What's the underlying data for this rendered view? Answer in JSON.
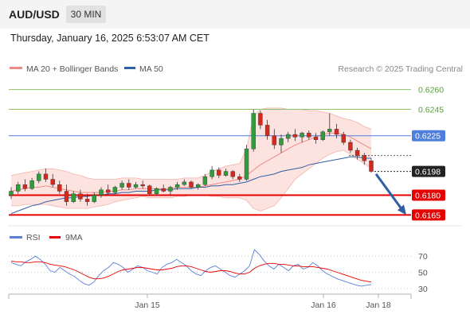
{
  "header": {
    "symbol": "AUD/USD",
    "timeframe": "30 MIN",
    "datetime": "Thursday, January 16, 2025 6:53:07 AM CET"
  },
  "legend": {
    "items": [
      {
        "label": "MA 20 + Bollinger Bands",
        "color": "#f08c84"
      },
      {
        "label": "MA 50",
        "color": "#2e5fa3"
      }
    ],
    "copyright": "Research © 2025 Trading Central"
  },
  "chart_data": [
    {
      "type": "line",
      "subtype": "candlestick",
      "title": "",
      "y_axis_side": "right",
      "ylim": [
        0.6158,
        0.627
      ],
      "x_tick_labels": [
        "Jan 15",
        "Jan 16",
        "Jan 18"
      ],
      "levels": [
        {
          "value": "0.6260",
          "kind": "target",
          "color": "#8dc26a"
        },
        {
          "value": "0.6245",
          "kind": "target",
          "color": "#8dc26a"
        },
        {
          "value": "0.6225",
          "kind": "pivot",
          "color": "#4f7fdc"
        },
        {
          "value": "0.6198",
          "kind": "last-price",
          "color": "#222222"
        },
        {
          "value": "0.6180",
          "kind": "support",
          "color": "#e60000"
        },
        {
          "value": "0.6165",
          "kind": "support",
          "color": "#e60000"
        }
      ],
      "forecast_arrow": {
        "from": 0.6196,
        "to": 0.6165,
        "direction": "down",
        "color": "#2e5fa3"
      },
      "series": [
        {
          "name": "MA 20 + Bollinger Bands",
          "color": "#f08c84"
        },
        {
          "name": "MA 50",
          "color": "#2e5fa3"
        }
      ],
      "candles": [
        [
          0.618,
          0.6186,
          0.6177,
          0.6183
        ],
        [
          0.6183,
          0.619,
          0.6181,
          0.6188
        ],
        [
          0.6188,
          0.6192,
          0.6183,
          0.6185
        ],
        [
          0.6185,
          0.6193,
          0.6184,
          0.6191
        ],
        [
          0.6191,
          0.6198,
          0.6189,
          0.6196
        ],
        [
          0.6196,
          0.62,
          0.619,
          0.6192
        ],
        [
          0.6192,
          0.6196,
          0.6186,
          0.6188
        ],
        [
          0.6188,
          0.6191,
          0.6181,
          0.6183
        ],
        [
          0.6183,
          0.6188,
          0.6172,
          0.6175
        ],
        [
          0.6175,
          0.6183,
          0.6174,
          0.6181
        ],
        [
          0.6181,
          0.6184,
          0.6175,
          0.6177
        ],
        [
          0.6177,
          0.6181,
          0.6172,
          0.6175
        ],
        [
          0.6175,
          0.6182,
          0.6174,
          0.618
        ],
        [
          0.618,
          0.6186,
          0.6178,
          0.6184
        ],
        [
          0.6184,
          0.6188,
          0.618,
          0.6182
        ],
        [
          0.6182,
          0.6187,
          0.6181,
          0.6186
        ],
        [
          0.6186,
          0.6191,
          0.6184,
          0.6189
        ],
        [
          0.6189,
          0.6192,
          0.6184,
          0.6186
        ],
        [
          0.6186,
          0.619,
          0.6185,
          0.6188
        ],
        [
          0.6188,
          0.6191,
          0.6185,
          0.6187
        ],
        [
          0.6187,
          0.6188,
          0.618,
          0.6181
        ],
        [
          0.6181,
          0.6186,
          0.618,
          0.6185
        ],
        [
          0.6185,
          0.6188,
          0.6182,
          0.6183
        ],
        [
          0.6183,
          0.6187,
          0.618,
          0.6186
        ],
        [
          0.6186,
          0.619,
          0.6184,
          0.6188
        ],
        [
          0.6188,
          0.6192,
          0.6187,
          0.619
        ],
        [
          0.619,
          0.6191,
          0.6185,
          0.6186
        ],
        [
          0.6186,
          0.6189,
          0.6184,
          0.6188
        ],
        [
          0.6188,
          0.6196,
          0.6187,
          0.6194
        ],
        [
          0.6194,
          0.6202,
          0.6192,
          0.6199
        ],
        [
          0.6199,
          0.6201,
          0.6193,
          0.6195
        ],
        [
          0.6195,
          0.62,
          0.6194,
          0.6198
        ],
        [
          0.6198,
          0.6199,
          0.6192,
          0.6194
        ],
        [
          0.6194,
          0.6196,
          0.619,
          0.6192
        ],
        [
          0.6192,
          0.6218,
          0.6191,
          0.6215
        ],
        [
          0.6215,
          0.6245,
          0.6213,
          0.6242
        ],
        [
          0.6242,
          0.6244,
          0.623,
          0.6233
        ],
        [
          0.6233,
          0.6237,
          0.6222,
          0.6225
        ],
        [
          0.6225,
          0.623,
          0.6215,
          0.6218
        ],
        [
          0.6218,
          0.6226,
          0.6212,
          0.6223
        ],
        [
          0.6223,
          0.6228,
          0.622,
          0.6226
        ],
        [
          0.6226,
          0.623,
          0.6221,
          0.6224
        ],
        [
          0.6224,
          0.6228,
          0.622,
          0.6227
        ],
        [
          0.6227,
          0.6229,
          0.6222,
          0.6224
        ],
        [
          0.6224,
          0.6227,
          0.6219,
          0.6222
        ],
        [
          0.6222,
          0.6229,
          0.6221,
          0.6228
        ],
        [
          0.6228,
          0.6242,
          0.6225,
          0.623
        ],
        [
          0.623,
          0.6234,
          0.6223,
          0.6226
        ],
        [
          0.6226,
          0.6228,
          0.6218,
          0.622
        ],
        [
          0.622,
          0.6222,
          0.6212,
          0.6214
        ],
        [
          0.6214,
          0.6216,
          0.6207,
          0.621
        ],
        [
          0.621,
          0.6212,
          0.6203,
          0.6206
        ],
        [
          0.6206,
          0.6208,
          0.6197,
          0.6198
        ]
      ],
      "ma20": [
        0.6183,
        0.6184,
        0.6185,
        0.6186,
        0.6186,
        0.6187,
        0.6186,
        0.6185,
        0.6184,
        0.6183,
        0.6182,
        0.6182,
        0.6182,
        0.6182,
        0.6183,
        0.6183,
        0.6184,
        0.6184,
        0.6185,
        0.6185,
        0.6185,
        0.6185,
        0.6185,
        0.6185,
        0.6186,
        0.6186,
        0.6186,
        0.6186,
        0.6187,
        0.6188,
        0.6189,
        0.619,
        0.6191,
        0.6192,
        0.6195,
        0.6199,
        0.6203,
        0.6206,
        0.6209,
        0.6212,
        0.6215,
        0.6218,
        0.622,
        0.6222,
        0.6224,
        0.6226,
        0.6227,
        0.6227,
        0.6226,
        0.6224,
        0.6221,
        0.6218,
        0.6215
      ],
      "ma50": [
        0.6166,
        0.6168,
        0.617,
        0.6172,
        0.6173,
        0.6175,
        0.6176,
        0.6177,
        0.6178,
        0.6178,
        0.6179,
        0.6179,
        0.618,
        0.618,
        0.6181,
        0.6181,
        0.6182,
        0.6182,
        0.6183,
        0.6183,
        0.6183,
        0.6184,
        0.6184,
        0.6184,
        0.6185,
        0.6185,
        0.6185,
        0.6186,
        0.6186,
        0.6187,
        0.6187,
        0.6188,
        0.6188,
        0.6189,
        0.619,
        0.6192,
        0.6194,
        0.6195,
        0.6196,
        0.6198,
        0.6199,
        0.62,
        0.6201,
        0.6203,
        0.6204,
        0.6205,
        0.6206,
        0.6207,
        0.6208,
        0.6209,
        0.6209,
        0.6208,
        0.6208
      ],
      "bb_upper": [
        0.6195,
        0.6196,
        0.6197,
        0.6198,
        0.6199,
        0.62,
        0.62,
        0.6199,
        0.6198,
        0.6196,
        0.6195,
        0.6193,
        0.6192,
        0.6192,
        0.6192,
        0.6192,
        0.6193,
        0.6193,
        0.6193,
        0.6192,
        0.6192,
        0.6192,
        0.6192,
        0.6192,
        0.6192,
        0.6193,
        0.6193,
        0.6193,
        0.6195,
        0.6198,
        0.62,
        0.6202,
        0.6203,
        0.6204,
        0.6215,
        0.624,
        0.6245,
        0.6246,
        0.6246,
        0.6246,
        0.6245,
        0.6245,
        0.6245,
        0.6244,
        0.6244,
        0.6243,
        0.6242,
        0.624,
        0.6238,
        0.6237,
        0.6235,
        0.6232,
        0.623
      ],
      "bb_lower": [
        0.6172,
        0.6172,
        0.6173,
        0.6173,
        0.6173,
        0.6173,
        0.6172,
        0.6171,
        0.617,
        0.617,
        0.617,
        0.617,
        0.6171,
        0.6172,
        0.6173,
        0.6175,
        0.6176,
        0.6177,
        0.6178,
        0.6179,
        0.6178,
        0.6178,
        0.6178,
        0.6178,
        0.6179,
        0.6179,
        0.618,
        0.618,
        0.618,
        0.6179,
        0.6179,
        0.6178,
        0.6178,
        0.6178,
        0.6176,
        0.617,
        0.6168,
        0.617,
        0.6172,
        0.6178,
        0.6185,
        0.6192,
        0.6196,
        0.62,
        0.6204,
        0.6208,
        0.6211,
        0.6213,
        0.6214,
        0.6211,
        0.6207,
        0.6204,
        0.62
      ]
    },
    {
      "type": "line",
      "title": "",
      "ylim": [
        25,
        80
      ],
      "y_ticks": [
        "70",
        "50",
        "30"
      ],
      "series": [
        {
          "name": "RSI",
          "color": "#5b7fd9",
          "values": [
            62,
            60,
            58,
            63,
            66,
            70,
            66,
            60,
            52,
            50,
            56,
            52,
            48,
            45,
            40,
            36,
            34,
            38,
            46,
            52,
            56,
            62,
            60,
            56,
            50,
            54,
            58,
            56,
            52,
            50,
            48,
            56,
            60,
            62,
            66,
            62,
            58,
            52,
            48,
            46,
            52,
            56,
            58,
            54,
            50,
            46,
            44,
            48,
            52,
            58,
            78,
            72,
            64,
            58,
            54,
            60,
            56,
            52,
            58,
            60,
            54,
            56,
            62,
            58,
            52,
            48,
            45,
            42,
            40,
            38,
            36,
            34,
            33,
            34,
            35
          ]
        },
        {
          "name": "9MA",
          "color": "#e60000",
          "values": [
            64,
            63,
            63,
            62,
            62,
            63,
            63,
            62,
            60,
            59,
            58,
            57,
            55,
            53,
            50,
            47,
            44,
            42,
            42,
            43,
            45,
            48,
            51,
            53,
            54,
            55,
            56,
            56,
            55,
            54,
            53,
            53,
            54,
            55,
            57,
            58,
            58,
            57,
            55,
            53,
            51,
            50,
            51,
            52,
            52,
            51,
            49,
            48,
            48,
            50,
            55,
            58,
            60,
            61,
            61,
            60,
            60,
            59,
            58,
            58,
            57,
            57,
            57,
            56,
            55,
            54,
            52,
            50,
            48,
            46,
            44,
            42,
            40,
            39,
            38
          ]
        }
      ]
    }
  ]
}
